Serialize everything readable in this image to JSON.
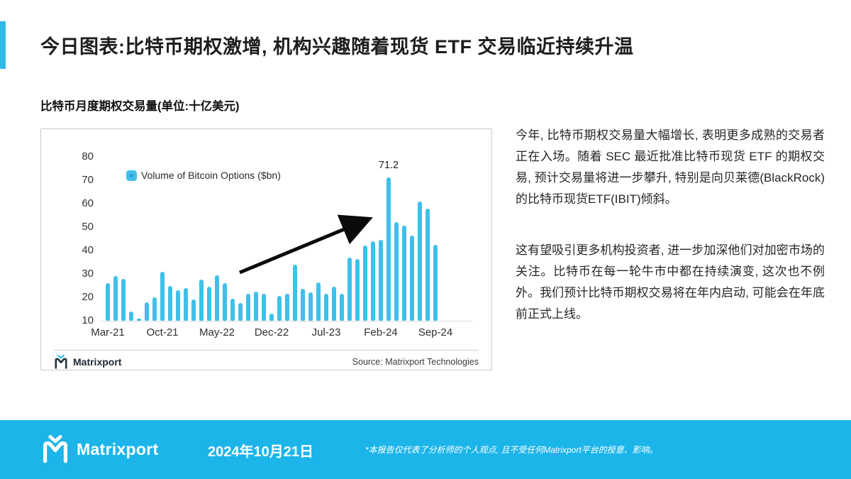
{
  "header": {
    "title": "今日图表:比特币期权激增, 机构兴趣随着现货 ETF 交易临近持续升温",
    "accent_color": "#2fb9e8"
  },
  "chart_section": {
    "subtitle": "比特币月度期权交易量(单位:十亿美元)",
    "legend_label": "Volume of Bitcoin Options ($bn)",
    "annotation_label": "71.2",
    "brand": "Matrixport",
    "source": "Source: Matrixport Technologies"
  },
  "chart_data": {
    "type": "bar",
    "title": "比特币月度期权交易量(单位:十亿美元)",
    "legend": [
      "Volume of Bitcoin Options ($bn)"
    ],
    "legend_position": "top-left",
    "grid": false,
    "bar_color": "#3ec0ea",
    "ylim": [
      10,
      80
    ],
    "yticks": [
      10,
      20,
      30,
      40,
      50,
      60,
      70,
      80
    ],
    "x_tick_labels": [
      "Mar-21",
      "Oct-21",
      "May-22",
      "Dec-22",
      "Jul-23",
      "Feb-24",
      "Sep-24"
    ],
    "x_tick_every": 7,
    "categories": [
      "Mar-21",
      "Apr-21",
      "May-21",
      "Jun-21",
      "Jul-21",
      "Aug-21",
      "Sep-21",
      "Oct-21",
      "Nov-21",
      "Dec-21",
      "Jan-22",
      "Feb-22",
      "Mar-22",
      "Apr-22",
      "May-22",
      "Jun-22",
      "Jul-22",
      "Aug-22",
      "Sep-22",
      "Oct-22",
      "Nov-22",
      "Dec-22",
      "Jan-23",
      "Feb-23",
      "Mar-23",
      "Apr-23",
      "May-23",
      "Jun-23",
      "Jul-23",
      "Aug-23",
      "Sep-23",
      "Oct-23",
      "Nov-23",
      "Dec-23",
      "Jan-24",
      "Feb-24",
      "Mar-24",
      "Apr-24",
      "May-24",
      "Jun-24",
      "Jul-24",
      "Aug-24",
      "Sep-24"
    ],
    "values": [
      26,
      29,
      28,
      14,
      11,
      18,
      20,
      31,
      25,
      23,
      24,
      19,
      27.5,
      24.5,
      29.5,
      26,
      19.5,
      17.5,
      21.5,
      22.5,
      21.5,
      13,
      20.5,
      21.5,
      34,
      23.5,
      22,
      26.5,
      21.5,
      24.5,
      21.5,
      37,
      36.5,
      42,
      44,
      44.5,
      71.2,
      52,
      50.5,
      46.5,
      61,
      58,
      42.5
    ],
    "annotation": {
      "text": "71.2",
      "category": "Mar-24",
      "value": 71.2
    }
  },
  "commentary": {
    "p1": "今年, 比特币期权交易量大幅增长, 表明更多成熟的交易者正在入场。随着 SEC 最近批准比特币现货 ETF 的期权交易, 预计交易量将进一步攀升, 特别是向贝莱德(BlackRock)的比特币现货ETF(IBIT)倾斜。",
    "p2": "这有望吸引更多机构投资者, 进一步加深他们对加密市场的关注。比特币在每一轮牛市中都在持续演变, 这次也不例外。我们预计比特币期权交易将在年内启动, 可能会在年底前正式上线。"
  },
  "footer": {
    "brand": "Matrixport",
    "date": "2024年10月21日",
    "disclaimer": "*本报告仅代表了分析师的个人观点, 且不受任何Matrixport平台的授意、影响。",
    "bg_color": "#1cb5ea"
  }
}
